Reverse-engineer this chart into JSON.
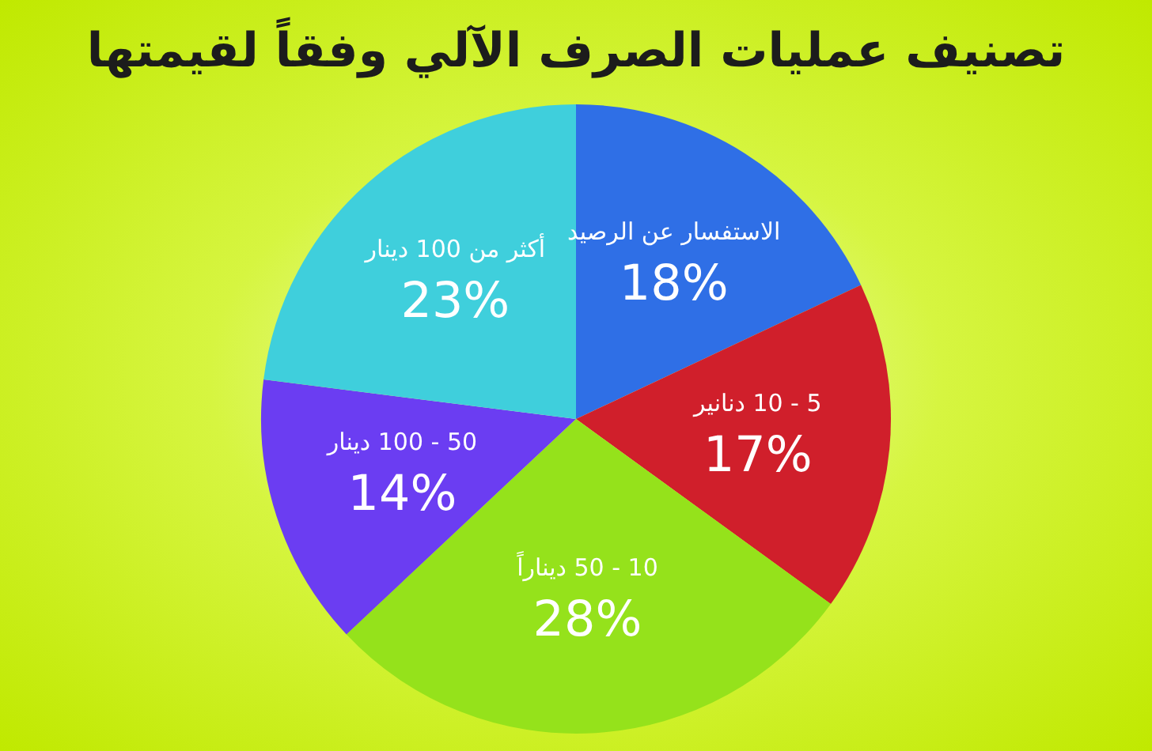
{
  "chart_data": {
    "type": "pie",
    "title": "تصنيف عمليات الصرف الآلي وفقاً لقيمتها",
    "categories": [
      "الاستفسار عن الرصيد",
      "5 - 10 دنانير",
      "10 - 50 ديناراً",
      "50 - 100 دينار",
      "أكثر من 100 دينار"
    ],
    "values": [
      18,
      17,
      28,
      14,
      23
    ],
    "colors": [
      "#2f6fe6",
      "#d01f2b",
      "#95e21b",
      "#6b3df2",
      "#3fcfdc"
    ],
    "value_labels": [
      "18%",
      "17%",
      "28%",
      "14%",
      "23%"
    ]
  }
}
